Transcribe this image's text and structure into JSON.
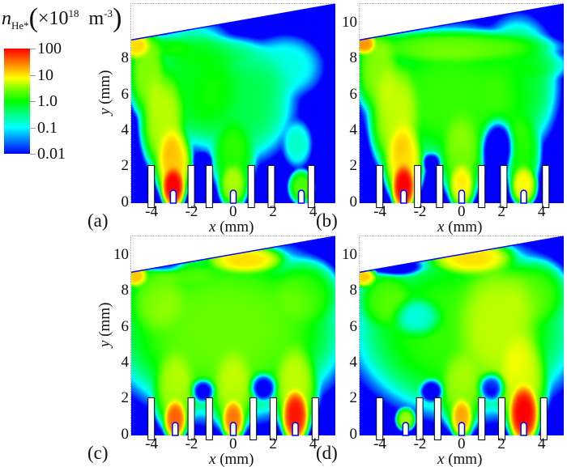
{
  "colorbar": {
    "quantity": "n",
    "subscript": "He*",
    "unit_prefix": "×10",
    "unit_exp": "18",
    "unit": "m",
    "unit_unit_exp": "-3",
    "labels": [
      "100",
      "10",
      "1.0",
      "0.1",
      "0.01"
    ],
    "colors": [
      "#ff0000",
      "#ffff00",
      "#00ff00",
      "#00ffff",
      "#0000ff"
    ]
  },
  "axis": {
    "x_label_var": "x",
    "x_label_unit": " (mm)",
    "y_label_var": "y",
    "y_label_unit": " (mm)"
  },
  "chart_data": [
    {
      "type": "heatmap",
      "panel_label": "(a)",
      "xlim": [
        -5.1,
        5.1
      ],
      "ylim": [
        -0.1,
        11.0
      ],
      "xticks": [
        "-4",
        "-2",
        "0",
        "2",
        "4"
      ],
      "yticks": [
        "0",
        "2",
        "4",
        "6",
        "8"
      ],
      "show_ylabel": true,
      "scale": "log10, 0.01 to 100 (×10^18 m^-3)",
      "pins_x": [
        -3.0,
        0.0,
        3.4
      ],
      "electrodes_x": [
        -4.1,
        -2.1,
        -1.2,
        0.9,
        1.9,
        3.9
      ],
      "blobs": [
        [
          -3,
          0.8,
          0.35,
          0.7,
          2.0
        ],
        [
          -3,
          2.2,
          0.55,
          1.3,
          1.2
        ],
        [
          -3.5,
          4.5,
          0.7,
          1.8,
          0.7
        ],
        [
          -4.3,
          7.2,
          0.6,
          1.6,
          0.5
        ],
        [
          -4.9,
          8.7,
          0.5,
          0.5,
          1.1
        ],
        [
          -3.5,
          8.6,
          1.0,
          0.4,
          -0.2
        ],
        [
          -2,
          6.5,
          1.6,
          2.2,
          -0.1
        ],
        [
          0,
          0.9,
          0.45,
          0.8,
          0.6
        ],
        [
          0,
          2.5,
          0.7,
          1.4,
          0.1
        ],
        [
          0.3,
          5.5,
          1.8,
          2.2,
          -0.3
        ],
        [
          3.4,
          0.8,
          0.4,
          0.6,
          0.3
        ],
        [
          3.2,
          3.2,
          0.5,
          0.9,
          -0.8
        ],
        [
          2.6,
          7.5,
          1.3,
          1.2,
          -0.9
        ],
        [
          -1.3,
          8.3,
          2,
          0.6,
          -0.6
        ]
      ],
      "holes": [
        [
          -1.5,
          2.2,
          0.35,
          0.4,
          1.5
        ]
      ]
    },
    {
      "type": "heatmap",
      "panel_label": "(b)",
      "xlim": [
        -5.1,
        5.1
      ],
      "ylim": [
        -0.1,
        11.0
      ],
      "xticks": [
        "-4",
        "-2",
        "0",
        "2",
        "4"
      ],
      "yticks": [
        "0",
        "2",
        "4",
        "6",
        "8",
        "10"
      ],
      "show_ylabel": false,
      "pins_x": [
        -2.9,
        0.0,
        3.1
      ],
      "electrodes_x": [
        -4.1,
        -2.2,
        -1.1,
        1.0,
        2.1,
        4.2
      ],
      "blobs": [
        [
          -2.9,
          0.8,
          0.35,
          0.8,
          2.0
        ],
        [
          -2.9,
          2.3,
          0.6,
          1.4,
          1.1
        ],
        [
          -3.3,
          4.8,
          0.8,
          2,
          0.7
        ],
        [
          -4.2,
          7.3,
          0.7,
          1.5,
          0.5
        ],
        [
          -4.9,
          8.8,
          0.4,
          0.4,
          1.4
        ],
        [
          -0.5,
          8.6,
          3.2,
          0.6,
          0.3
        ],
        [
          0,
          0.9,
          0.4,
          0.8,
          1.0
        ],
        [
          0,
          2.6,
          0.7,
          1.6,
          0.4
        ],
        [
          -0.5,
          5.8,
          2.6,
          2.4,
          0.2
        ],
        [
          3.1,
          0.9,
          0.4,
          0.7,
          1.0
        ],
        [
          3.0,
          2.8,
          0.6,
          1.5,
          0.1
        ],
        [
          2.8,
          6.5,
          1.3,
          2.4,
          -0.2
        ],
        [
          3.6,
          7.6,
          1.2,
          0.6,
          -0.6
        ]
      ],
      "holes": [
        [
          1.8,
          3,
          0.6,
          1.2,
          2.5
        ],
        [
          -1.5,
          2.2,
          0.35,
          0.4,
          1.5
        ]
      ]
    },
    {
      "type": "heatmap",
      "panel_label": "(c)",
      "xlim": [
        -5.1,
        5.1
      ],
      "ylim": [
        -0.1,
        11.0
      ],
      "xticks": [
        "-4",
        "-2",
        "0",
        "2",
        "4"
      ],
      "yticks": [
        "0",
        "2",
        "4",
        "6",
        "8",
        "10"
      ],
      "show_ylabel": true,
      "pins_x": [
        -2.9,
        0.0,
        3.1
      ],
      "electrodes_x": [
        -4.1,
        -2.1,
        -1.2,
        1.0,
        2.0,
        4.1
      ],
      "blobs": [
        [
          -2.9,
          0.8,
          0.35,
          0.7,
          1.6
        ],
        [
          -2.9,
          2.5,
          0.7,
          1.5,
          0.6
        ],
        [
          0,
          0.8,
          0.35,
          0.7,
          1.5
        ],
        [
          0,
          2.5,
          0.7,
          1.5,
          0.6
        ],
        [
          3.1,
          1.0,
          0.4,
          0.9,
          1.9
        ],
        [
          3.1,
          2.6,
          0.7,
          1.6,
          0.7
        ],
        [
          -0.3,
          5.8,
          3.6,
          3.0,
          0.4
        ],
        [
          0.6,
          9.7,
          1.2,
          0.5,
          1.1
        ],
        [
          -4.9,
          8.8,
          0.4,
          0.4,
          1.2
        ],
        [
          -3.8,
          7.5,
          1,
          1.3,
          0.3
        ],
        [
          3.6,
          7.8,
          1.1,
          1.2,
          0.1
        ],
        [
          -2.5,
          8.9,
          1.2,
          0.4,
          -0.1
        ]
      ],
      "holes": [
        [
          -1.5,
          2.4,
          0.45,
          0.5,
          2.2
        ],
        [
          1.5,
          2.6,
          0.5,
          0.6,
          2.2
        ],
        [
          -3.5,
          9.4,
          0.8,
          0.3,
          1.5
        ]
      ]
    },
    {
      "type": "heatmap",
      "panel_label": "(d)",
      "xlim": [
        -5.1,
        5.1
      ],
      "ylim": [
        -0.1,
        11.0
      ],
      "xticks": [
        "-4",
        "-2",
        "0",
        "2",
        "4"
      ],
      "yticks": [
        "0",
        "2",
        "4",
        "6",
        "8",
        "10"
      ],
      "show_ylabel": false,
      "pins_x": [
        -2.8,
        0.0,
        3.1
      ],
      "electrodes_x": [
        -4.1,
        -2.1,
        -1.2,
        1.0,
        2.0,
        4.1
      ],
      "blobs": [
        [
          -2.8,
          0.8,
          0.3,
          0.4,
          0.6
        ],
        [
          0,
          0.9,
          0.35,
          0.7,
          1.3
        ],
        [
          0,
          2.5,
          0.7,
          1.5,
          0.5
        ],
        [
          3.1,
          1.1,
          0.45,
          1.0,
          2.0
        ],
        [
          3.0,
          3,
          0.8,
          1.8,
          0.8
        ],
        [
          0.2,
          5.8,
          3.5,
          3.0,
          0.2
        ],
        [
          0.5,
          9.8,
          1.3,
          0.6,
          1.1
        ],
        [
          1.8,
          6,
          1.4,
          2.5,
          0.6
        ],
        [
          -4.9,
          8.8,
          0.4,
          0.4,
          1.2
        ],
        [
          -3.8,
          7.5,
          0.9,
          1.1,
          0.2
        ],
        [
          3.6,
          7.8,
          1.1,
          1.2,
          0.2
        ]
      ],
      "holes": [
        [
          -2.2,
          6.5,
          0.9,
          0.8,
          1.0
        ],
        [
          -1.5,
          2.4,
          0.45,
          0.5,
          2.2
        ],
        [
          1.5,
          2.6,
          0.5,
          0.6,
          2.0
        ],
        [
          -3.3,
          9.3,
          1.1,
          0.4,
          2
        ]
      ]
    }
  ]
}
